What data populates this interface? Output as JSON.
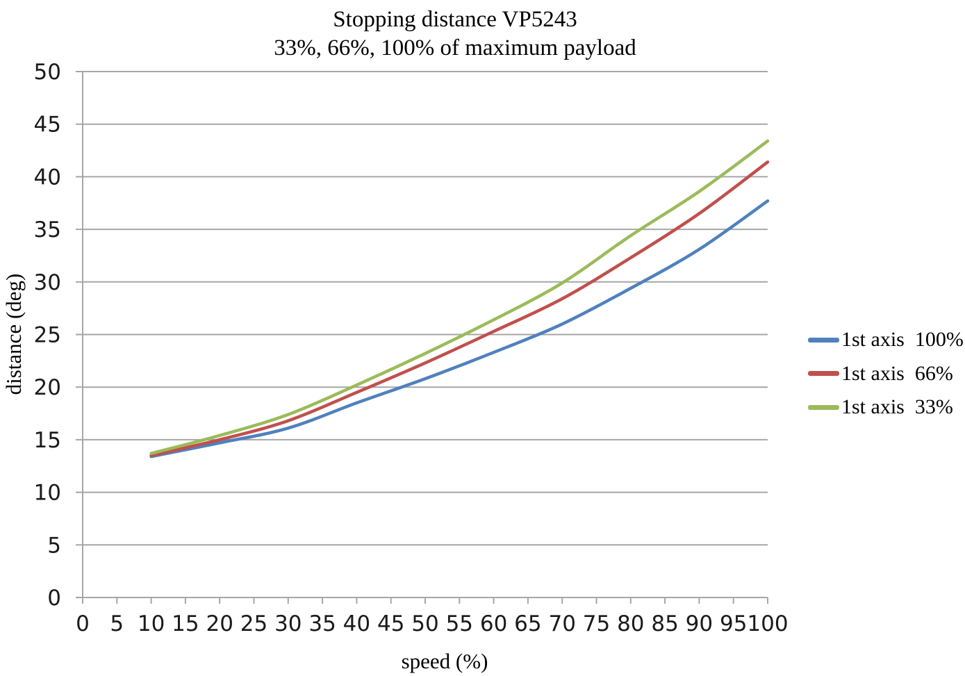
{
  "colors": {
    "grid": "#A6A6A6",
    "axis": "#A6A6A6",
    "tick_text": "#1A1A1A",
    "title_text": "#000000",
    "series_blue": "#4F81BD",
    "series_red": "#C0504D",
    "series_green": "#9BBB59"
  },
  "chart_data": {
    "type": "line",
    "title": "Stopping distance VP5243",
    "subtitle": "33%, 66%, 100% of maximum payload",
    "xlabel": "speed (%)",
    "ylabel": "distance (deg)",
    "xlim": [
      0,
      100
    ],
    "ylim": [
      0,
      50
    ],
    "x_ticks": [
      0,
      5,
      10,
      15,
      20,
      25,
      30,
      35,
      40,
      45,
      50,
      55,
      60,
      65,
      70,
      75,
      80,
      85,
      90,
      95,
      100
    ],
    "y_ticks": [
      0,
      5,
      10,
      15,
      20,
      25,
      30,
      35,
      40,
      45,
      50
    ],
    "grid": "horizontal-major",
    "legend_position": "right",
    "line_style": "smooth, no markers",
    "x": [
      10,
      20,
      30,
      40,
      50,
      60,
      70,
      80,
      90,
      100
    ],
    "series": [
      {
        "name": "1st axis  100%",
        "color": "#4F81BD",
        "values": [
          13.4,
          14.7,
          16.1,
          18.5,
          20.8,
          23.3,
          26.0,
          29.4,
          33.1,
          37.7
        ]
      },
      {
        "name": "1st axis  66%",
        "color": "#C0504D",
        "values": [
          13.5,
          15.0,
          16.8,
          19.5,
          22.3,
          25.3,
          28.4,
          32.3,
          36.5,
          41.4
        ]
      },
      {
        "name": "1st axis  33%",
        "color": "#9BBB59",
        "values": [
          13.7,
          15.4,
          17.4,
          20.2,
          23.2,
          26.4,
          29.9,
          34.4,
          38.6,
          43.4
        ]
      }
    ]
  }
}
